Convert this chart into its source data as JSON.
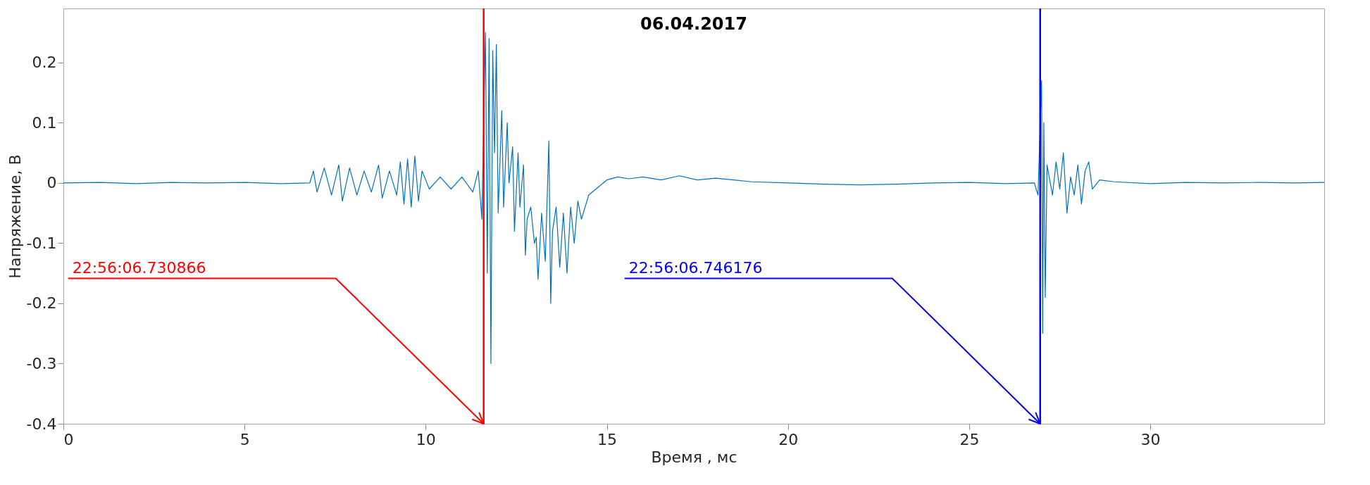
{
  "chart_data": {
    "type": "line",
    "title": "06.04.2017",
    "xlabel": "Время , мс",
    "ylabel": "Напряжение, В",
    "xlim": [
      0,
      34.8
    ],
    "xticks": [
      0,
      5,
      10,
      15,
      20,
      25,
      30
    ],
    "ylim": [
      -0.4,
      0.29
    ],
    "yticks": [
      -0.4,
      -0.3,
      -0.2,
      -0.1,
      0,
      0.1,
      0.2
    ],
    "grid": false,
    "series": [
      {
        "color": "#0072bd",
        "x": [
          0,
          1,
          2,
          3,
          4,
          5,
          6,
          6.8,
          6.9,
          7.0,
          7.2,
          7.4,
          7.6,
          7.7,
          7.9,
          8.1,
          8.3,
          8.5,
          8.7,
          8.8,
          9.0,
          9.2,
          9.3,
          9.4,
          9.5,
          9.6,
          9.7,
          9.8,
          9.9,
          10.1,
          10.4,
          10.7,
          11.0,
          11.3,
          11.45,
          11.55,
          11.65,
          11.7,
          11.75,
          11.8,
          11.85,
          11.9,
          11.95,
          12.0,
          12.1,
          12.15,
          12.25,
          12.3,
          12.4,
          12.45,
          12.55,
          12.6,
          12.7,
          12.75,
          12.8,
          12.9,
          13.0,
          13.05,
          13.1,
          13.2,
          13.3,
          13.35,
          13.4,
          13.45,
          13.5,
          13.6,
          13.7,
          13.8,
          13.9,
          14.0,
          14.1,
          14.2,
          14.3,
          14.5,
          14.7,
          15.0,
          15.3,
          15.6,
          16.0,
          16.5,
          17.0,
          17.5,
          18.0,
          18.5,
          19.0,
          20,
          21,
          22,
          23,
          24,
          25,
          26,
          26.8,
          26.9,
          27.0,
          27.03,
          27.06,
          27.1,
          27.15,
          27.3,
          27.4,
          27.5,
          27.6,
          27.7,
          27.8,
          27.9,
          28.0,
          28.1,
          28.2,
          28.3,
          28.4,
          28.6,
          29,
          30,
          31,
          32,
          33,
          34,
          34.8
        ],
        "values": [
          0,
          0.001,
          -0.001,
          0.001,
          0,
          0.001,
          -0.001,
          0,
          0.02,
          -0.015,
          0.025,
          -0.02,
          0.03,
          -0.03,
          0.025,
          -0.02,
          0.02,
          -0.015,
          0.03,
          -0.025,
          0.02,
          -0.02,
          0.035,
          -0.035,
          0.04,
          -0.04,
          0.045,
          -0.03,
          0.02,
          -0.01,
          0.01,
          -0.01,
          0.01,
          -0.015,
          0.02,
          -0.06,
          0.25,
          -0.15,
          0.24,
          -0.3,
          0.22,
          0.05,
          0.23,
          -0.05,
          0.12,
          -0.04,
          0.1,
          0.0,
          0.06,
          -0.08,
          0.05,
          -0.04,
          0.03,
          -0.12,
          -0.06,
          -0.04,
          -0.1,
          -0.09,
          -0.16,
          -0.05,
          -0.13,
          -0.03,
          0.07,
          -0.2,
          -0.08,
          -0.04,
          -0.14,
          -0.05,
          -0.15,
          -0.04,
          -0.1,
          -0.03,
          -0.06,
          -0.02,
          -0.01,
          0.005,
          0.01,
          0.007,
          0.01,
          0.005,
          0.012,
          0.005,
          0.008,
          0.005,
          0.002,
          0,
          -0.002,
          -0.003,
          -0.002,
          0.0,
          0.001,
          -0.001,
          0.0,
          -0.02,
          0.17,
          -0.25,
          0.1,
          -0.19,
          0.03,
          -0.02,
          0.035,
          -0.01,
          0.05,
          -0.05,
          0.01,
          -0.02,
          0.03,
          -0.035,
          0.02,
          0.035,
          -0.01,
          0.005,
          0.002,
          -0.001,
          0.001,
          0.0,
          0.001,
          0.0,
          0.001
        ]
      }
    ],
    "ref_lines": [
      {
        "axis": "x",
        "value": 11.6,
        "color": "#ff0000"
      },
      {
        "axis": "x",
        "value": 26.96,
        "color": "#0000ff"
      }
    ],
    "annotations": [
      {
        "text": "22:56:06.730866",
        "x": 11.6,
        "y": -0.4
      },
      {
        "text": "22:56:06.746176",
        "x": 26.96,
        "y": -0.4
      }
    ]
  }
}
